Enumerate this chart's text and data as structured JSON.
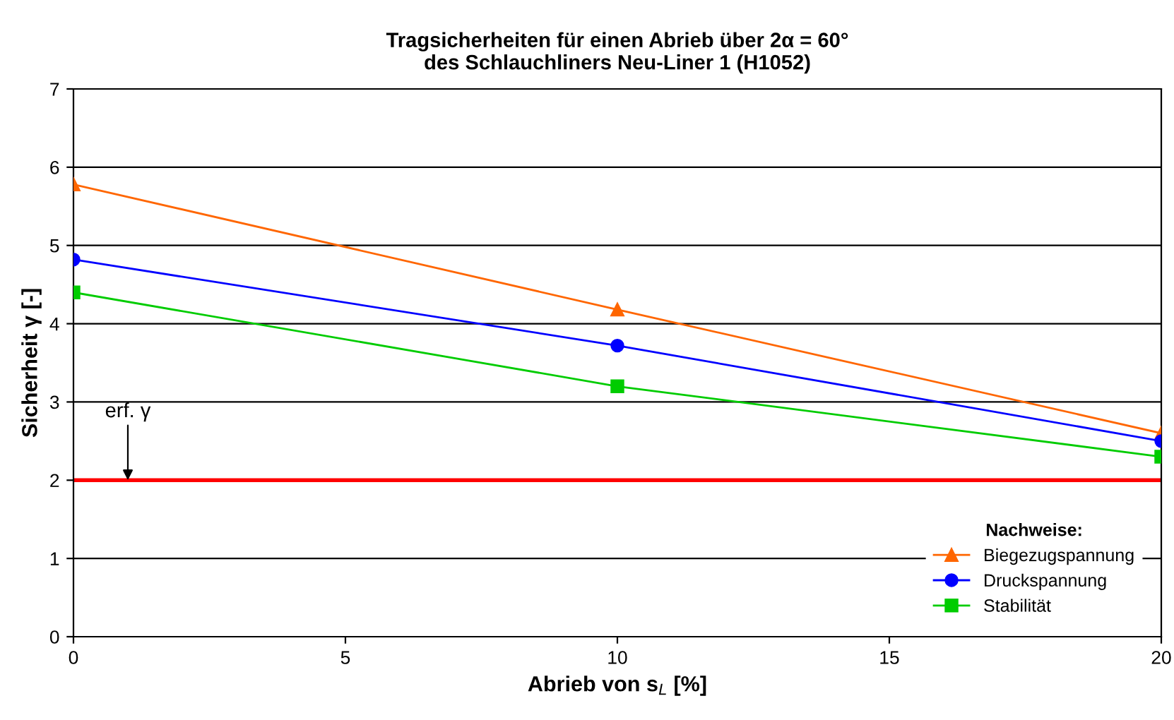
{
  "chart_data": {
    "type": "line",
    "title": "Tragsicherheiten für einen Abrieb über 2α = 60°\ndes Schlauchliners Neu-Liner 1 (H1052)",
    "xlabel": "Abrieb von s$_{L}$ [%]",
    "ylabel": "Sicherheit γ [-]",
    "legend_title": "Nachweise:",
    "x": [
      0,
      10,
      20
    ],
    "series": [
      {
        "name": "Biegezugspannung",
        "color": "#ff6600",
        "marker": "triangle",
        "values": [
          5.78,
          4.18,
          2.6
        ]
      },
      {
        "name": "Druckspannung",
        "color": "#0000ff",
        "marker": "circle",
        "values": [
          4.82,
          3.72,
          2.5
        ]
      },
      {
        "name": "Stabilität",
        "color": "#00cc00",
        "marker": "square",
        "values": [
          4.4,
          3.2,
          2.3
        ]
      }
    ],
    "xlim": [
      0,
      20
    ],
    "xticks": [
      0,
      5,
      10,
      15,
      20
    ],
    "ylim": [
      0,
      7
    ],
    "yticks": [
      0,
      1,
      2,
      3,
      4,
      5,
      6,
      7
    ],
    "ref_lines": [
      {
        "axis": "y",
        "value": 2,
        "color": "#ff0000"
      }
    ],
    "annotations": [
      {
        "text": "erf. γ",
        "x": 1,
        "y": 2
      }
    ],
    "grid": "y",
    "legend": "bottom right",
    "line_style": "solid"
  }
}
